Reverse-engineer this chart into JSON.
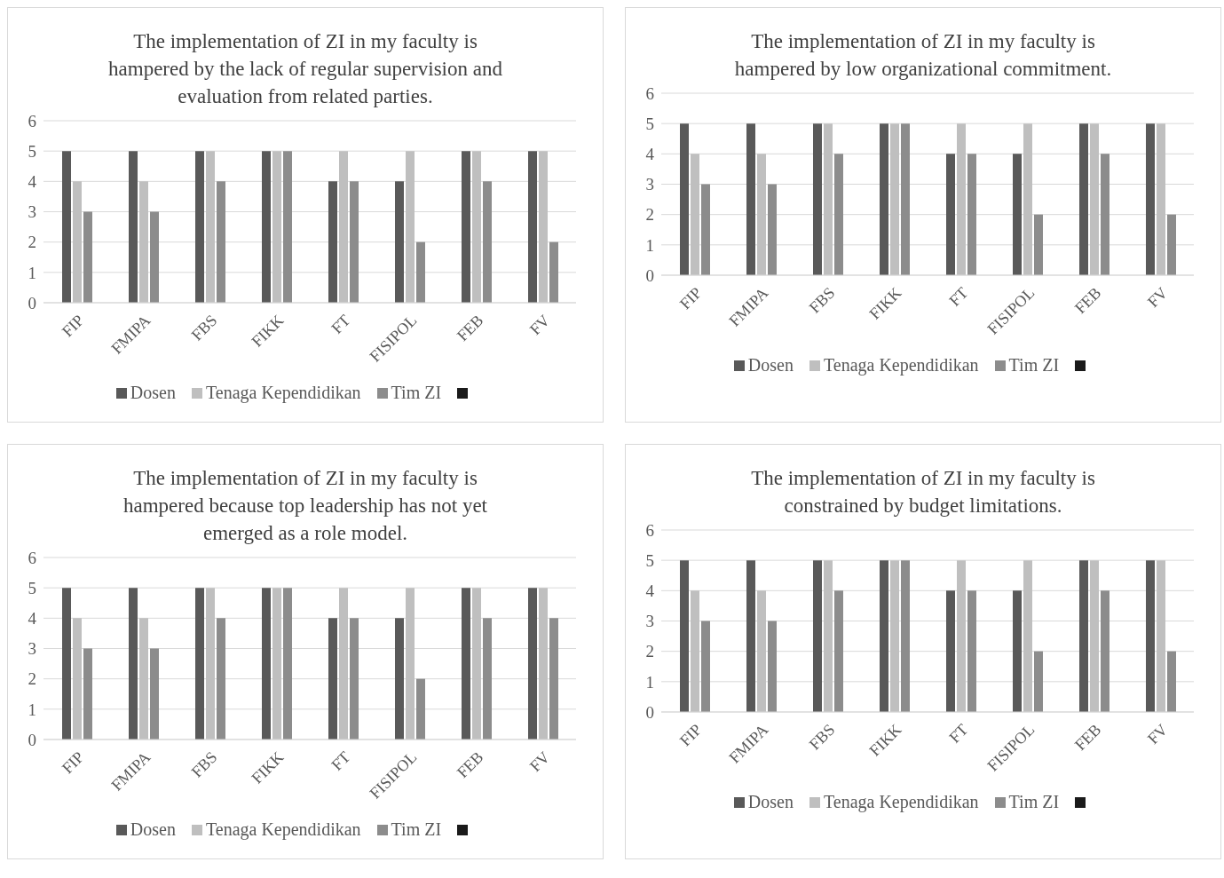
{
  "chart_data": [
    {
      "type": "bar",
      "title": "The implementation of ZI in my faculty is hampered by the lack of regular supervision and evaluation from related parties.",
      "categories": [
        "FIP",
        "FMIPA",
        "FBS",
        "FIKK",
        "FT",
        "FISIPOL",
        "FEB",
        "FV"
      ],
      "series": [
        {
          "name": "Dosen",
          "color": "#595959",
          "values": [
            5,
            5,
            5,
            5,
            4,
            4,
            5,
            5
          ]
        },
        {
          "name": "Tenaga Kependidikan",
          "color": "#bfbfbf",
          "values": [
            4,
            4,
            5,
            5,
            5,
            5,
            5,
            5
          ]
        },
        {
          "name": "Tim ZI",
          "color": "#8c8c8c",
          "values": [
            3,
            3,
            4,
            5,
            4,
            2,
            4,
            2
          ]
        }
      ],
      "ylim": [
        0,
        6
      ],
      "yticks": [
        0,
        1,
        2,
        3,
        4,
        5,
        6
      ],
      "grid": "y",
      "legend": "bottom"
    },
    {
      "type": "bar",
      "title": "The implementation of ZI in my faculty is hampered by low organizational commitment.",
      "categories": [
        "FIP",
        "FMIPA",
        "FBS",
        "FIKK",
        "FT",
        "FISIPOL",
        "FEB",
        "FV"
      ],
      "series": [
        {
          "name": "Dosen",
          "color": "#595959",
          "values": [
            5,
            5,
            5,
            5,
            4,
            4,
            5,
            5
          ]
        },
        {
          "name": "Tenaga Kependidikan",
          "color": "#bfbfbf",
          "values": [
            4,
            4,
            5,
            5,
            5,
            5,
            5,
            5
          ]
        },
        {
          "name": "Tim ZI",
          "color": "#8c8c8c",
          "values": [
            3,
            3,
            4,
            5,
            4,
            2,
            4,
            2
          ]
        }
      ],
      "ylim": [
        0,
        6
      ],
      "yticks": [
        0,
        1,
        2,
        3,
        4,
        5,
        6
      ],
      "grid": "y",
      "legend": "bottom"
    },
    {
      "type": "bar",
      "title": "The implementation of ZI in my faculty is hampered because top leadership has not yet emerged as a role model.",
      "categories": [
        "FIP",
        "FMIPA",
        "FBS",
        "FIKK",
        "FT",
        "FISIPOL",
        "FEB",
        "FV"
      ],
      "series": [
        {
          "name": "Dosen",
          "color": "#595959",
          "values": [
            5,
            5,
            5,
            5,
            4,
            4,
            5,
            5
          ]
        },
        {
          "name": "Tenaga Kependidikan",
          "color": "#bfbfbf",
          "values": [
            4,
            4,
            5,
            5,
            5,
            5,
            5,
            5
          ]
        },
        {
          "name": "Tim ZI",
          "color": "#8c8c8c",
          "values": [
            3,
            3,
            4,
            5,
            4,
            2,
            4,
            4
          ]
        }
      ],
      "ylim": [
        0,
        6
      ],
      "yticks": [
        0,
        1,
        2,
        3,
        4,
        5,
        6
      ],
      "grid": "y",
      "legend": "bottom"
    },
    {
      "type": "bar",
      "title": "The implementation of ZI in my faculty is constrained by budget limitations.",
      "categories": [
        "FIP",
        "FMIPA",
        "FBS",
        "FIKK",
        "FT",
        "FISIPOL",
        "FEB",
        "FV"
      ],
      "series": [
        {
          "name": "Dosen",
          "color": "#595959",
          "values": [
            5,
            5,
            5,
            5,
            4,
            4,
            5,
            5
          ]
        },
        {
          "name": "Tenaga Kependidikan",
          "color": "#bfbfbf",
          "values": [
            4,
            4,
            5,
            5,
            5,
            5,
            5,
            5
          ]
        },
        {
          "name": "Tim ZI",
          "color": "#8c8c8c",
          "values": [
            3,
            3,
            4,
            5,
            4,
            2,
            4,
            2
          ]
        }
      ],
      "ylim": [
        0,
        6
      ],
      "yticks": [
        0,
        1,
        2,
        3,
        4,
        5,
        6
      ],
      "grid": "y",
      "legend": "bottom"
    }
  ]
}
